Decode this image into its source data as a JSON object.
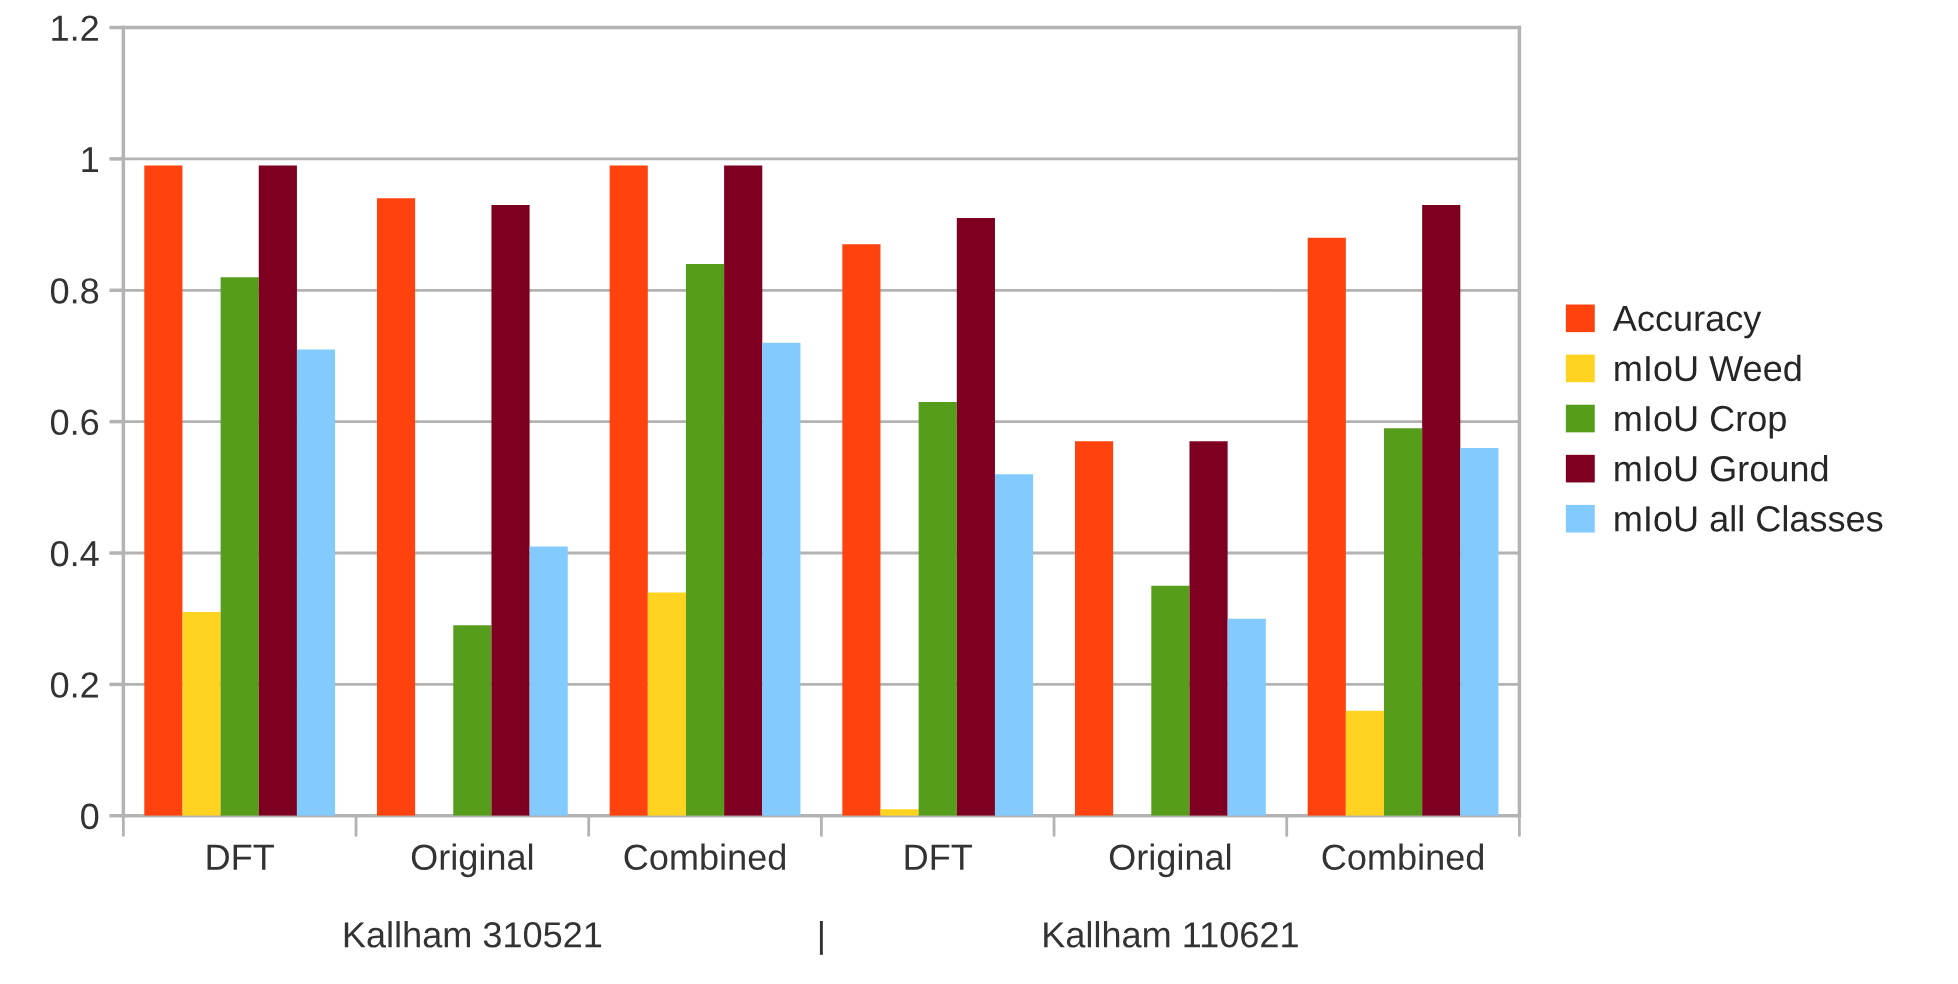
{
  "chart_data": {
    "type": "bar",
    "categories": [
      "DFT",
      "Original",
      "Combined",
      "DFT",
      "Original",
      "Combined"
    ],
    "series": [
      {
        "name": "Accuracy",
        "color": "#ff420e",
        "values": [
          0.99,
          0.94,
          0.99,
          0.87,
          0.57,
          0.88
        ]
      },
      {
        "name": "mIoU Weed",
        "color": "#ffd320",
        "values": [
          0.31,
          null,
          0.34,
          0.01,
          null,
          0.16
        ]
      },
      {
        "name": "mIoU Crop",
        "color": "#579d1c",
        "values": [
          0.82,
          0.29,
          0.84,
          0.63,
          0.35,
          0.59
        ]
      },
      {
        "name": "mIoU Ground",
        "color": "#7e0021",
        "values": [
          0.99,
          0.93,
          0.99,
          0.91,
          0.57,
          0.93
        ]
      },
      {
        "name": "mIoU all Classes",
        "color": "#83caff",
        "values": [
          0.71,
          0.41,
          0.72,
          0.52,
          0.3,
          0.56
        ]
      }
    ],
    "annotations": [
      "Kallham 310521",
      "|",
      "Kallham 110621"
    ],
    "ylim": [
      0,
      1.2
    ],
    "yticks": [
      0,
      0.2,
      0.4,
      0.6,
      0.8,
      1,
      1.2
    ],
    "grid": "y",
    "legend": "right"
  }
}
